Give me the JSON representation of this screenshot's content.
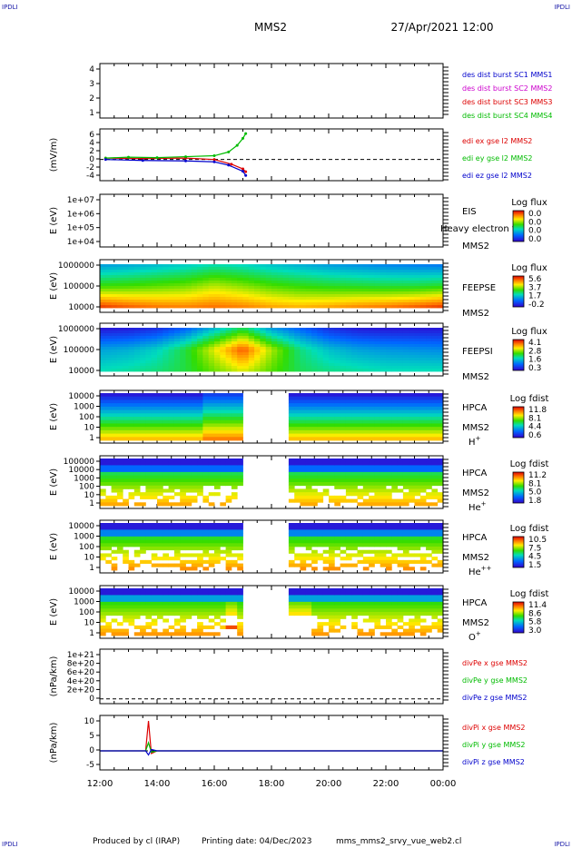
{
  "header": {
    "corner_label": "IPDLI",
    "title": "MMS2",
    "datetime": "27/Apr/2021 12:00"
  },
  "footer": {
    "produced_by": "Produced by cl (IRAP)",
    "printing_date": "Printing date: 04/Dec/2023",
    "filename": "mms_mms2_srvy_vue_web2.cl"
  },
  "colors": {
    "mms1": "#0000cc",
    "mms2": "#cc00cc",
    "mms3": "#dd0000",
    "mms4": "#00bb00",
    "x_comp": "#dd0000",
    "y_comp": "#00bb00",
    "z_comp": "#0000cc"
  },
  "chart_data": [
    {
      "type": "line",
      "panel": "des_dist",
      "ylabel": "",
      "yticks": [
        "4",
        "3",
        "2",
        "1"
      ],
      "ylim": [
        0.8,
        4.4
      ],
      "legend_placement": "right",
      "series": [
        {
          "name": "des dist burst SC1 MMS1",
          "color_key": "mms1",
          "values": []
        },
        {
          "name": "des dist burst SC2 MMS2",
          "color_key": "mms2",
          "values": []
        },
        {
          "name": "des dist burst SC3 MMS3",
          "color_key": "mms3",
          "values": []
        },
        {
          "name": "des dist burst SC4 MMS4",
          "color_key": "mms4",
          "values": []
        }
      ]
    },
    {
      "type": "line",
      "panel": "edi",
      "ylabel": "(mV/m)",
      "yticks": [
        "6",
        "4",
        "2",
        "0",
        "-2",
        "-4"
      ],
      "ylim": [
        -4.5,
        6.5
      ],
      "legend_placement": "right",
      "series": [
        {
          "name": "edi ex gse l2 MMS2",
          "color_key": "x_comp",
          "x": [
            12.2,
            13.5,
            15.0,
            16.0,
            16.6,
            17.0,
            17.1
          ],
          "values": [
            0.3,
            0.2,
            0.3,
            0.0,
            -1.0,
            -2.0,
            -2.6
          ]
        },
        {
          "name": "edi ey gse l2 MMS2",
          "color_key": "y_comp",
          "x": [
            12.2,
            13.0,
            14.0,
            15.0,
            16.0,
            16.5,
            16.8,
            17.0,
            17.1
          ],
          "values": [
            0.3,
            0.5,
            0.4,
            0.6,
            0.8,
            1.6,
            3.0,
            4.5,
            5.5
          ]
        },
        {
          "name": "edi ez gse l2 MMS2",
          "color_key": "z_comp",
          "x": [
            12.2,
            13.5,
            15.0,
            16.0,
            16.5,
            17.0,
            17.1
          ],
          "values": [
            0.0,
            -0.2,
            -0.3,
            -0.5,
            -1.2,
            -2.5,
            -3.4
          ]
        }
      ]
    },
    {
      "type": "heatmap",
      "panel": "eis",
      "ylabel": "E (eV)",
      "yticks": [
        "1e+07",
        "1e+06",
        "1e+05",
        "1e+04"
      ],
      "instrument": "EIS",
      "spacecraft": "MMS2",
      "overlay_text": "Heavy electron to",
      "colorbar": {
        "label": "Log flux",
        "ticks": [
          "0.0",
          "0.0",
          "0.0",
          "0.0"
        ]
      },
      "z": []
    },
    {
      "type": "heatmap",
      "panel": "feeps_e",
      "ylabel": "E (eV)",
      "yticks": [
        "1000000",
        "100000",
        "10000"
      ],
      "instrument": "FEEPSE",
      "spacecraft": "MMS2",
      "colorbar": {
        "label": "Log flux",
        "ticks": [
          "5.6",
          "3.7",
          "1.7",
          "-0.2"
        ]
      },
      "x": [
        12,
        13,
        14,
        15,
        16,
        17,
        18,
        19,
        20,
        21,
        22,
        23,
        24
      ],
      "levels": [
        "high",
        "mid",
        "low"
      ],
      "z": [
        [
          0.3,
          0.32,
          0.35,
          0.38,
          0.42,
          0.4,
          0.36,
          0.33,
          0.3,
          0.28,
          0.26,
          0.25,
          0.24
        ],
        [
          0.55,
          0.56,
          0.58,
          0.6,
          0.66,
          0.62,
          0.57,
          0.54,
          0.52,
          0.51,
          0.5,
          0.5,
          0.52
        ],
        [
          0.92,
          0.88,
          0.85,
          0.84,
          0.86,
          0.84,
          0.8,
          0.78,
          0.8,
          0.83,
          0.85,
          0.88,
          0.92
        ]
      ]
    },
    {
      "type": "heatmap",
      "panel": "feeps_i",
      "ylabel": "E (eV)",
      "yticks": [
        "1000000",
        "100000",
        "10000"
      ],
      "instrument": "FEEPSI",
      "spacecraft": "MMS2",
      "colorbar": {
        "label": "Log flux",
        "ticks": [
          "4.1",
          "2.8",
          "1.6",
          "0.3"
        ]
      },
      "x": [
        12,
        13,
        14,
        15,
        16,
        17,
        18,
        19,
        20,
        21,
        22,
        23,
        24
      ],
      "levels": [
        "high",
        "mid",
        "low"
      ],
      "z": [
        [
          0.05,
          0.06,
          0.1,
          0.2,
          0.35,
          0.5,
          0.3,
          0.2,
          0.1,
          0.06,
          0.05,
          0.05,
          0.05
        ],
        [
          0.3,
          0.32,
          0.38,
          0.5,
          0.7,
          0.9,
          0.65,
          0.45,
          0.35,
          0.3,
          0.28,
          0.27,
          0.26
        ],
        [
          0.4,
          0.42,
          0.45,
          0.5,
          0.6,
          0.7,
          0.58,
          0.48,
          0.44,
          0.42,
          0.4,
          0.4,
          0.4
        ]
      ]
    },
    {
      "type": "heatmap",
      "panel": "hpca_h",
      "ylabel": "E (eV)",
      "yticks": [
        "10000",
        "1000",
        "100",
        "10",
        "1"
      ],
      "instrument": "HPCA",
      "spacecraft": "MMS2",
      "species_base": "H",
      "species_sup": "+",
      "colorbar": {
        "label": "Log fdist",
        "ticks": [
          "11.8",
          "8.1",
          "4.4",
          "0.6"
        ]
      },
      "gap": [
        16.9,
        18.6
      ]
    },
    {
      "type": "heatmap",
      "panel": "hpca_he",
      "ylabel": "E (eV)",
      "yticks": [
        "100000",
        "10000",
        "1000",
        "100",
        "10",
        "1"
      ],
      "instrument": "HPCA",
      "spacecraft": "MMS2",
      "species_base": "He",
      "species_sup": "+",
      "colorbar": {
        "label": "Log fdist",
        "ticks": [
          "11.2",
          "8.1",
          "5.0",
          "1.8"
        ]
      },
      "gap": [
        16.9,
        18.6
      ]
    },
    {
      "type": "heatmap",
      "panel": "hpca_hepp",
      "ylabel": "E (eV)",
      "yticks": [
        "10000",
        "1000",
        "100",
        "10",
        "1"
      ],
      "instrument": "HPCA",
      "spacecraft": "MMS2",
      "species_base": "He",
      "species_sup": "++",
      "colorbar": {
        "label": "Log fdist",
        "ticks": [
          "10.5",
          "7.5",
          "4.5",
          "1.5"
        ]
      },
      "gap": [
        16.9,
        18.6
      ]
    },
    {
      "type": "heatmap",
      "panel": "hpca_o",
      "ylabel": "E (eV)",
      "yticks": [
        "10000",
        "1000",
        "100",
        "10",
        "1"
      ],
      "instrument": "HPCA",
      "spacecraft": "MMS2",
      "species_base": "O",
      "species_sup": "+",
      "colorbar": {
        "label": "Log fdist",
        "ticks": [
          "11.4",
          "8.6",
          "5.8",
          "3.0"
        ]
      },
      "gap": [
        16.9,
        18.6
      ]
    },
    {
      "type": "line",
      "panel": "divpe",
      "ylabel": "(nPa/km)",
      "yticks": [
        "1e+21",
        "8e+20",
        "6e+20",
        "4e+20",
        "2e+20",
        "0"
      ],
      "ylim": [
        -1e+20,
        1.05e+21
      ],
      "legend_placement": "right",
      "series": [
        {
          "name": "divPe x gse MMS2",
          "color_key": "x_comp",
          "values": []
        },
        {
          "name": "divPe y gse MMS2",
          "color_key": "y_comp",
          "values": []
        },
        {
          "name": "divPe z gse MMS2",
          "color_key": "z_comp",
          "values": []
        }
      ]
    },
    {
      "type": "line",
      "panel": "divpi",
      "ylabel": "(nPa/km)",
      "yticks": [
        "10",
        "5",
        "0",
        "-5"
      ],
      "ylim": [
        -7,
        13
      ],
      "legend_placement": "right",
      "xlabels": [
        "12:00",
        "14:00",
        "16:00",
        "18:00",
        "20:00",
        "22:00",
        "00:00"
      ],
      "series": [
        {
          "name": "divPi x gse MMS2",
          "color_key": "x_comp",
          "x": [
            12,
            13.6,
            13.7,
            13.8,
            14.0,
            24
          ],
          "values": [
            0,
            0,
            11,
            -1,
            0,
            0
          ]
        },
        {
          "name": "divPi y gse MMS2",
          "color_key": "y_comp",
          "x": [
            12,
            13.6,
            13.7,
            13.8,
            14.0,
            24
          ],
          "values": [
            0,
            0,
            3,
            -0.5,
            0,
            0
          ]
        },
        {
          "name": "divPi z gse MMS2",
          "color_key": "z_comp",
          "x": [
            12,
            13.6,
            13.7,
            13.8,
            14.0,
            24
          ],
          "values": [
            0,
            0,
            -1.5,
            0.5,
            0,
            0
          ]
        }
      ]
    }
  ]
}
